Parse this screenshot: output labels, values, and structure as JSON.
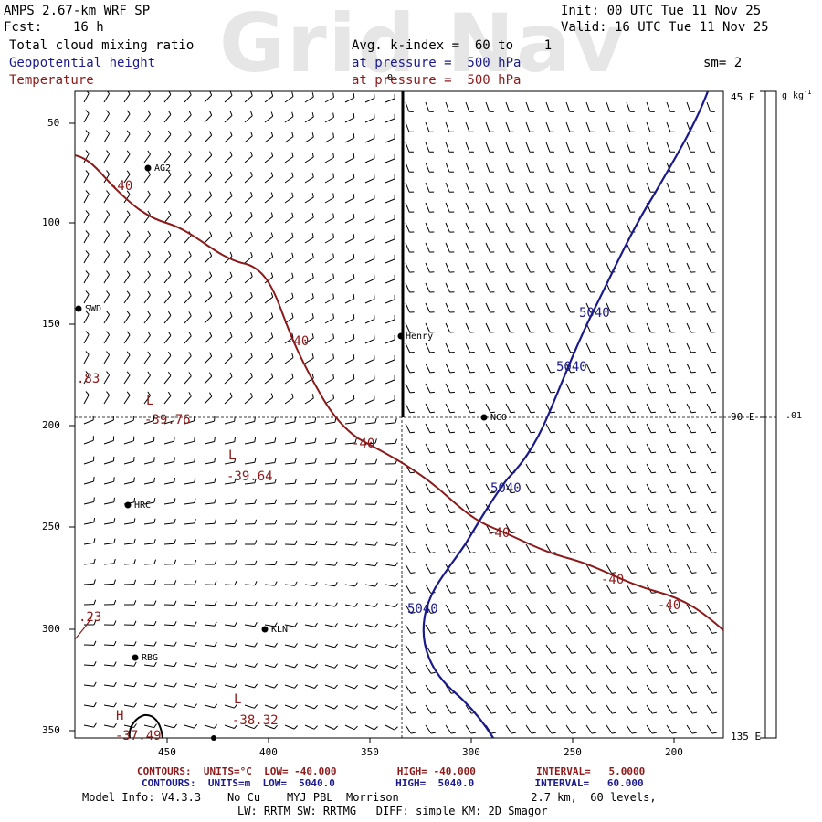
{
  "watermark": "Grid Nav",
  "header": {
    "model": "AMPS 2.67-km WRF SP",
    "fcst_label": "Fcst:",
    "fcst_value": "16 h",
    "init": "Init: 00 UTC Tue 11 Nov 25",
    "valid": "Valid: 16 UTC Tue 11 Nov 25",
    "field1": "Total cloud mixing ratio",
    "field2": "Geopotential height",
    "field3": "Temperature",
    "avg": "Avg. k-index =  60 to    1",
    "pressure_blue": "at pressure =  500 hPa",
    "pressure_red": "at pressure =  500 hPa",
    "sm": "sm= 2"
  },
  "axes": {
    "x_ticks": [
      "450",
      "400",
      "350",
      "300",
      "250",
      "200"
    ],
    "y_ticks": [
      "50",
      "100",
      "150",
      "200",
      "250",
      "300",
      "350"
    ],
    "right_labels": [
      "45 E",
      "90 E",
      "135 E"
    ],
    "colorbar_unit": "g kg",
    "colorbar_unit_exp": "-1",
    "colorbar_value": ".01",
    "top_label": "0"
  },
  "stations": [
    {
      "name": "AG2"
    },
    {
      "name": "SWD"
    },
    {
      "name": "Henry"
    },
    {
      "name": "NCO"
    },
    {
      "name": "HRC"
    },
    {
      "name": "KLN"
    },
    {
      "name": "RBG"
    }
  ],
  "contour_labels": {
    "temp_labels": [
      "-40",
      "-40",
      "-40",
      "-40",
      "-40",
      "-40"
    ],
    "height_labels": [
      "5040",
      "5040",
      "5040",
      "5040"
    ],
    "lows": [
      {
        "mark": "L",
        "value": "-39.76"
      },
      {
        "mark": "L",
        "value": "-39.64"
      },
      {
        "mark": "L",
        "value": "-38.32"
      }
    ],
    "high": {
      "mark": "H",
      "value": "-37.49"
    },
    "edge_values": [
      ".83",
      ".23"
    ]
  },
  "footer": {
    "line1_red": "CONTOURS:  UNITS=°C  LOW= -40.000          HIGH= -40.000          INTERVAL=   5.0000",
    "line2_blue": "CONTOURS:  UNITS=m  LOW=  5040.0          HIGH=  5040.0          INTERVAL=   60.000",
    "line3": "Model Info: V4.3.3    No Cu    MYJ PBL  Morrison                    2.7 km,  60 levels,",
    "line4": "LW: RRTM SW: RRTMG   DIFF: simple KM: 2D Smagor"
  },
  "colors": {
    "temperature": "#8c1a1a",
    "height": "#1a1a8c",
    "text": "#000000"
  }
}
